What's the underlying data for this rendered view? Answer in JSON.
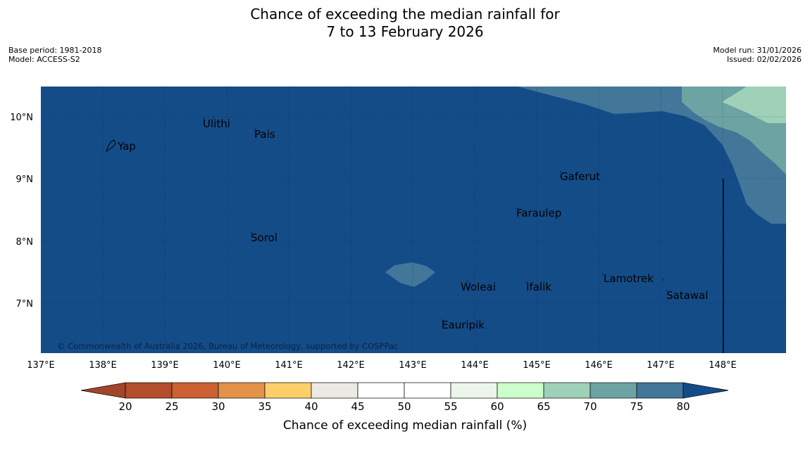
{
  "title": {
    "line1": "Chance of exceeding the median rainfall for",
    "line2": "7 to 13 February 2026"
  },
  "meta": {
    "base_period": "Base period: 1981-2018",
    "model": "Model: ACCESS-S2",
    "model_run": "Model run: 31/01/2026",
    "issued": "Issued: 02/02/2026"
  },
  "map": {
    "lon_range": [
      137,
      149
    ],
    "lat_range": [
      6.2,
      10.5
    ],
    "lat_labels": [
      "10°N",
      "9°N",
      "8°N",
      "7°N"
    ],
    "lon_labels": [
      "137°E",
      "138°E",
      "139°E",
      "140°E",
      "141°E",
      "142°E",
      "143°E",
      "144°E",
      "145°E",
      "146°E",
      "147°E",
      "148°E"
    ],
    "copyright": "© Commonwealth of Australia 2026, Bureau of Meteorology, supported by COSPPac",
    "places": [
      {
        "name": "Yap"
      },
      {
        "name": "Ulithi"
      },
      {
        "name": "Pais"
      },
      {
        "name": "Gaferut"
      },
      {
        "name": "Faraulep"
      },
      {
        "name": "Sorol"
      },
      {
        "name": "Lamotrek"
      },
      {
        "name": "Woleai"
      },
      {
        "name": "Ifalik"
      },
      {
        "name": "Satawal"
      },
      {
        "name": "Eauripik"
      }
    ]
  },
  "legend": {
    "title": "Chance of exceeding median rainfall (%)",
    "ticks": [
      "20",
      "25",
      "30",
      "35",
      "40",
      "45",
      "50",
      "55",
      "60",
      "65",
      "70",
      "75",
      "80"
    ],
    "colors": [
      "#a3452a",
      "#b34d2b",
      "#cc6132",
      "#e29249",
      "#fdcf6b",
      "#ede9e4",
      "#ffffff",
      "#ffffff",
      "#ebf5ea",
      "#ccffcc",
      "#9ed1b8",
      "#6ea3a3",
      "#42779a",
      "#144c88"
    ]
  },
  "colors": {
    "above_80": "#144c88",
    "band_75_80": "#42779a",
    "band_70_75": "#6ea3a3",
    "band_65_70": "#9ed1b8"
  }
}
